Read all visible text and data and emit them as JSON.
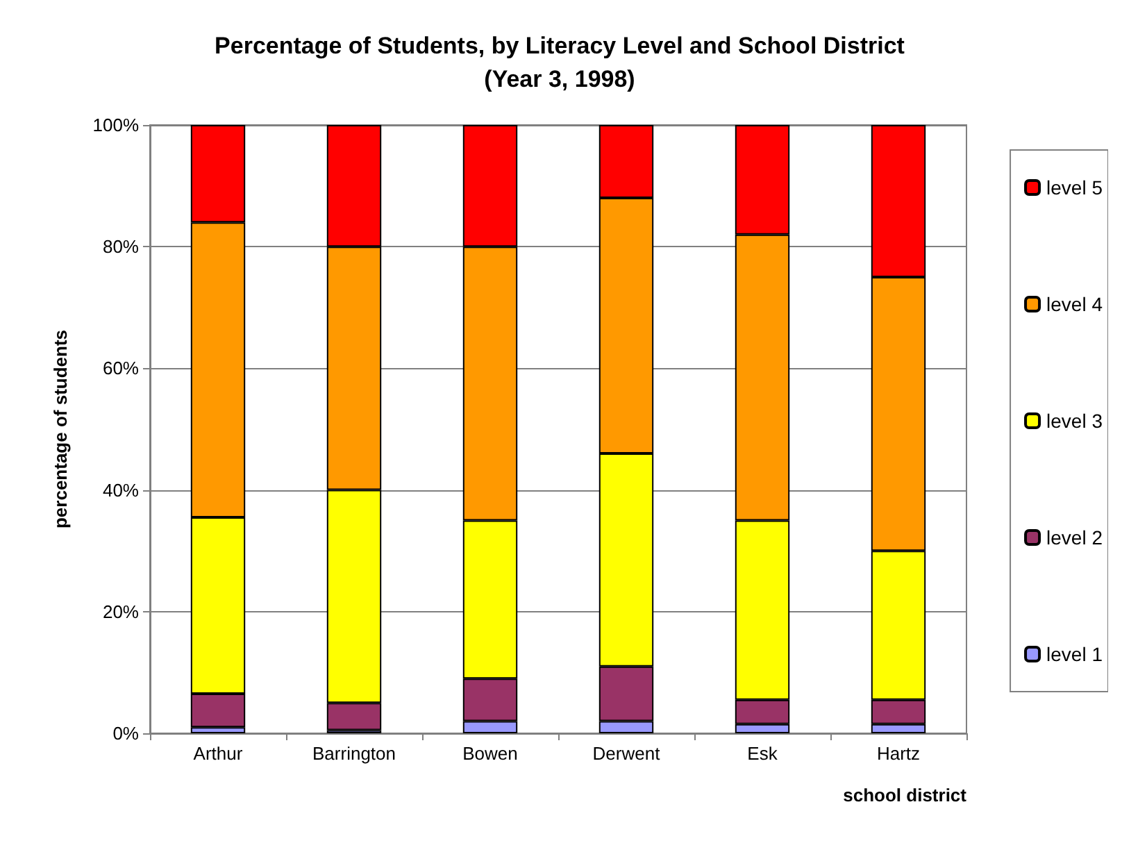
{
  "chart_data": {
    "type": "bar",
    "title": "Percentage of Students, by Literacy Level and School District\n(Year 3, 1998)",
    "xlabel": "school district",
    "ylabel": "percentage of students",
    "categories": [
      "Arthur",
      "Barrington",
      "Bowen",
      "Derwent",
      "Esk",
      "Hartz"
    ],
    "stacked": true,
    "series": [
      {
        "name": "level 1",
        "color": "#9999ff",
        "values": [
          1,
          0.5,
          2,
          2,
          1.5,
          1.5
        ]
      },
      {
        "name": "level 2",
        "color": "#993366",
        "values": [
          5.5,
          4.5,
          7,
          9,
          4,
          4
        ]
      },
      {
        "name": "level 3",
        "color": "#ffff00",
        "values": [
          29,
          35,
          26,
          35,
          29.5,
          24.5
        ]
      },
      {
        "name": "level 4",
        "color": "#ff9900",
        "values": [
          48.5,
          40,
          45,
          42,
          47,
          45
        ]
      },
      {
        "name": "level 5",
        "color": "#ff0000",
        "values": [
          16,
          20,
          20,
          12,
          18,
          25
        ]
      }
    ],
    "ylim": [
      0,
      100
    ],
    "yticks": [
      {
        "value": 0,
        "label": "0%"
      },
      {
        "value": 20,
        "label": "20%"
      },
      {
        "value": 40,
        "label": "40%"
      },
      {
        "value": 60,
        "label": "60%"
      },
      {
        "value": 80,
        "label": "80%"
      },
      {
        "value": 100,
        "label": "100%"
      }
    ],
    "grid": "y",
    "legend": "right"
  }
}
